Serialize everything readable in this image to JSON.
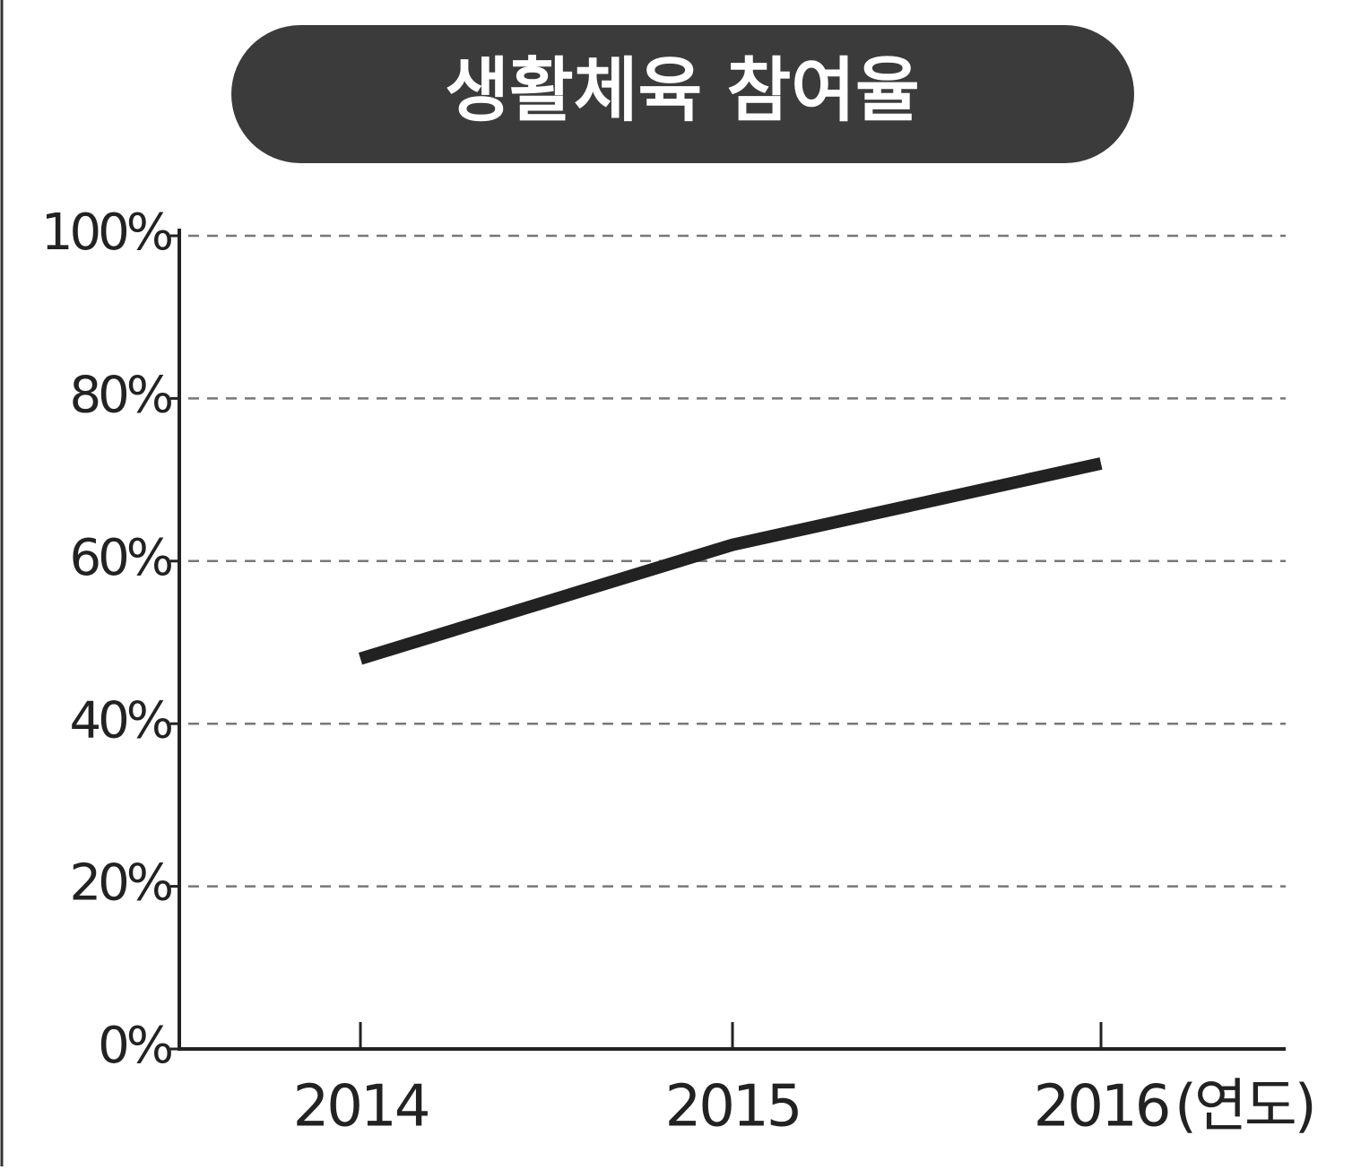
{
  "chart_data": {
    "type": "line",
    "title": "생활체육 참여율",
    "categories": [
      "2014",
      "2015",
      "2016"
    ],
    "x_label": "(연도)",
    "values": [
      48,
      62,
      72
    ],
    "color": "#222222",
    "ylim": [
      0,
      100
    ],
    "yticks": [
      {
        "value": 0,
        "label": "0%"
      },
      {
        "value": 20,
        "label": "20%"
      },
      {
        "value": 40,
        "label": "40%"
      },
      {
        "value": 60,
        "label": "60%"
      },
      {
        "value": 80,
        "label": "80%"
      },
      {
        "value": 100,
        "label": "100%"
      }
    ],
    "grid": true
  }
}
